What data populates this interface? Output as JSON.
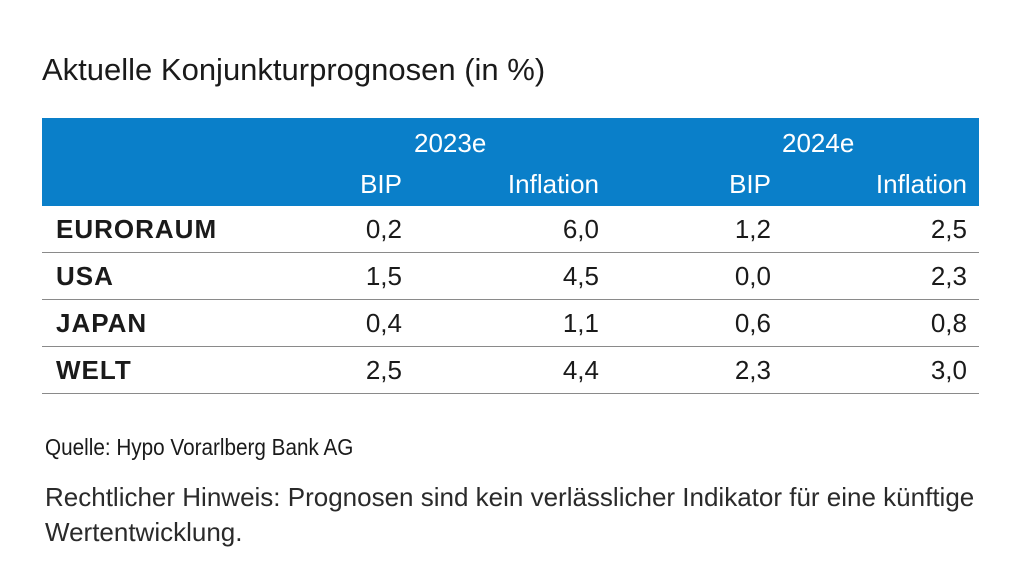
{
  "title": "Aktuelle Konjunkturprognosen (in %)",
  "chart_data": {
    "type": "table",
    "title": "Aktuelle Konjunkturprognosen (in %)",
    "years": [
      "2023e",
      "2024e"
    ],
    "columns": [
      "BIP",
      "Inflation",
      "BIP",
      "Inflation"
    ],
    "header_color": "#0a7fc9",
    "rows": [
      {
        "label": "EURORAUM",
        "values": [
          "0,2",
          "6,0",
          "1,2",
          "2,5"
        ]
      },
      {
        "label": "USA",
        "values": [
          "1,5",
          "4,5",
          "0,0",
          "2,3"
        ]
      },
      {
        "label": "JAPAN",
        "values": [
          "0,4",
          "1,1",
          "0,6",
          "0,8"
        ]
      },
      {
        "label": "WELT",
        "values": [
          "2,5",
          "4,4",
          "2,3",
          "3,0"
        ]
      }
    ]
  },
  "source": "Quelle: Hypo Vorarlberg Bank AG",
  "note": "Rechtlicher Hinweis: Prognosen sind kein verlässlicher Indikator für eine künftige Wertentwicklung."
}
